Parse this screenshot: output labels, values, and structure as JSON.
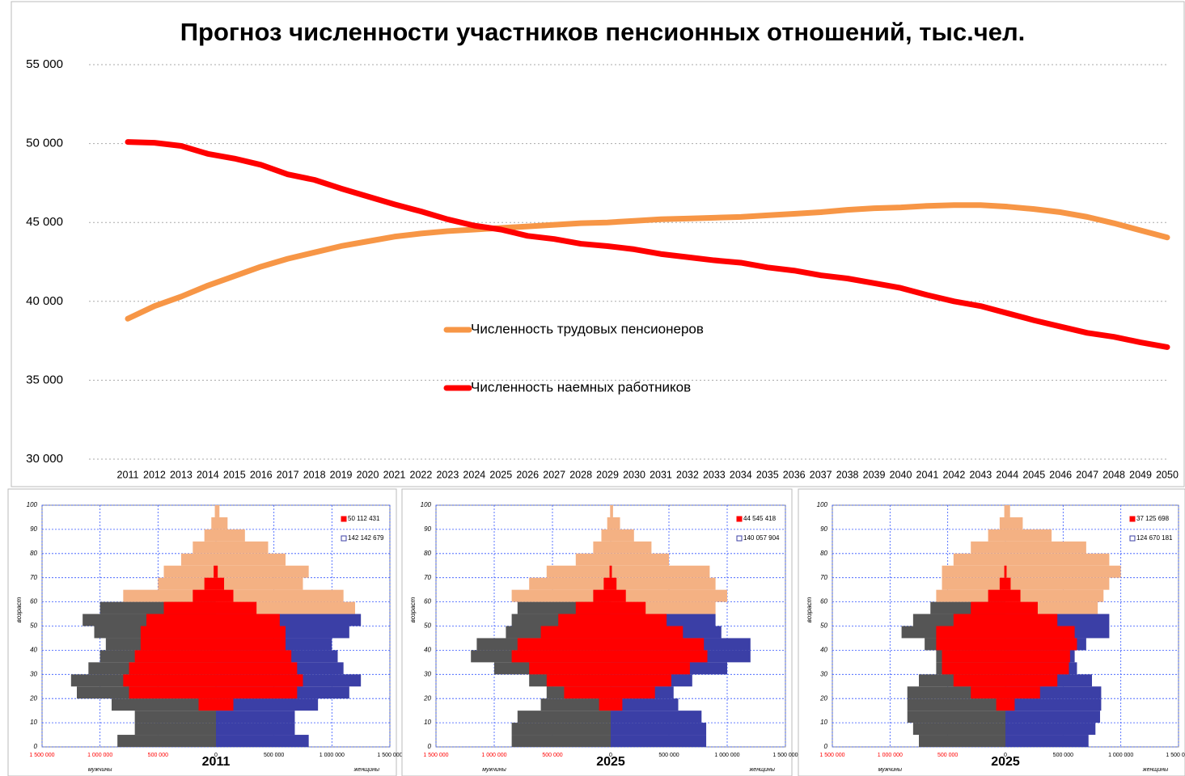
{
  "chart_data": [
    {
      "type": "line",
      "title": "Прогноз численности участников пенсионных отношений, тыс.чел.",
      "x": [
        2011,
        2012,
        2013,
        2014,
        2015,
        2016,
        2017,
        2018,
        2019,
        2020,
        2021,
        2022,
        2023,
        2024,
        2025,
        2026,
        2027,
        2028,
        2029,
        2030,
        2031,
        2032,
        2033,
        2034,
        2035,
        2036,
        2037,
        2038,
        2039,
        2040,
        2041,
        2042,
        2043,
        2044,
        2045,
        2046,
        2047,
        2048,
        2049,
        2050
      ],
      "series": [
        {
          "name": "Численность трудовых пенсионеров",
          "color": "#f79646",
          "values": [
            38900,
            39700,
            40300,
            41000,
            41600,
            42200,
            42700,
            43100,
            43500,
            43800,
            44100,
            44300,
            44450,
            44550,
            44650,
            44750,
            44850,
            44950,
            45000,
            45100,
            45200,
            45250,
            45300,
            45350,
            45450,
            45550,
            45650,
            45800,
            45900,
            45950,
            46050,
            46100,
            46100,
            46000,
            45850,
            45650,
            45350,
            44950,
            44500,
            44050
          ]
        },
        {
          "name": "Численность наемных работников",
          "color": "#ff0000",
          "values": [
            50100,
            50050,
            49850,
            49350,
            49050,
            48650,
            48050,
            47700,
            47150,
            46650,
            46150,
            45700,
            45200,
            44800,
            44550,
            44150,
            43950,
            43650,
            43500,
            43300,
            43000,
            42800,
            42600,
            42450,
            42150,
            41950,
            41650,
            41450,
            41150,
            40850,
            40400,
            40000,
            39700,
            39250,
            38800,
            38400,
            38000,
            37750,
            37400,
            37100
          ]
        }
      ],
      "ylim": [
        30000,
        55000
      ],
      "yticks": [
        {
          "value": 30000,
          "label": "30 000"
        },
        {
          "value": 35000,
          "label": "35 000"
        },
        {
          "value": 40000,
          "label": "40 000"
        },
        {
          "value": 45000,
          "label": "45 000"
        },
        {
          "value": 50000,
          "label": "50 000"
        },
        {
          "value": 55000,
          "label": "55 000"
        }
      ],
      "grid": true,
      "legend": "center"
    },
    {
      "type": "pyramid",
      "title": "2011",
      "xlabel_left": "мужчины",
      "xlabel_right": "женщины",
      "ylabel": "возраст",
      "categories": [
        0,
        5,
        10,
        15,
        20,
        25,
        30,
        35,
        40,
        45,
        50,
        55,
        60,
        65,
        70,
        75,
        80,
        85,
        90,
        95
      ],
      "ylim": [
        0,
        100
      ],
      "yticks": [
        0,
        10,
        20,
        30,
        40,
        50,
        60,
        70,
        80,
        90,
        100
      ],
      "xlim": [
        -1500000,
        1500000
      ],
      "xticks": [
        {
          "value": -1500000,
          "label": "1 500 000"
        },
        {
          "value": -1000000,
          "label": "1 000 000"
        },
        {
          "value": -500000,
          "label": "500 000"
        },
        0,
        {
          "value": 500000,
          "label": "500 000"
        },
        {
          "value": 1000000,
          "label": "1 000 000"
        },
        {
          "value": 1500000,
          "label": "1 500 000"
        }
      ],
      "left_tick_color": "#ff0000",
      "pensioner_color": "#f4b183",
      "pensioner_age_left": 60,
      "pensioner_age_right": 55,
      "series": [
        {
          "name": "50 112 431",
          "color": "#ff0000",
          "left": [
            0,
            0,
            0,
            150000,
            750000,
            800000,
            750000,
            700000,
            650000,
            650000,
            600000,
            450000,
            200000,
            100000,
            20000,
            0,
            0,
            0,
            0,
            0
          ],
          "right": [
            0,
            0,
            0,
            150000,
            700000,
            750000,
            700000,
            650000,
            600000,
            600000,
            550000,
            350000,
            150000,
            70000,
            15000,
            0,
            0,
            0,
            0,
            0
          ]
        },
        {
          "name": "142 142 679",
          "color": "#3b3fa6",
          "left_color": "#555555",
          "left": [
            850000,
            700000,
            700000,
            900000,
            1200000,
            1250000,
            1100000,
            1000000,
            950000,
            1050000,
            1150000,
            1000000,
            800000,
            500000,
            450000,
            300000,
            200000,
            100000,
            40000,
            10000
          ],
          "right": [
            800000,
            680000,
            680000,
            880000,
            1150000,
            1250000,
            1100000,
            1050000,
            1000000,
            1150000,
            1250000,
            1200000,
            1100000,
            750000,
            800000,
            600000,
            450000,
            250000,
            100000,
            30000
          ]
        }
      ]
    },
    {
      "type": "pyramid",
      "title": "2025",
      "xlabel_left": "мужчины",
      "xlabel_right": "женщины",
      "ylabel": "возраст",
      "categories": [
        0,
        5,
        10,
        15,
        20,
        25,
        30,
        35,
        40,
        45,
        50,
        55,
        60,
        65,
        70,
        75,
        80,
        85,
        90,
        95
      ],
      "ylim": [
        0,
        100
      ],
      "yticks": [
        0,
        10,
        20,
        30,
        40,
        50,
        60,
        70,
        80,
        90,
        100
      ],
      "xlim": [
        -1500000,
        1500000
      ],
      "xticks": [
        {
          "value": -1500000,
          "label": "1 500 000"
        },
        {
          "value": -1000000,
          "label": "1 000 000"
        },
        {
          "value": -500000,
          "label": "500 000"
        },
        0,
        {
          "value": 500000,
          "label": "500 000"
        },
        {
          "value": 1000000,
          "label": "1 000 000"
        },
        {
          "value": 1500000,
          "label": "1 500 000"
        }
      ],
      "left_tick_color": "#ff0000",
      "pensioner_color": "#f4b183",
      "pensioner_age_left": 60,
      "pensioner_age_right": 55,
      "series": [
        {
          "name": "44 545 418",
          "color": "#ff0000",
          "left": [
            0,
            0,
            0,
            100000,
            400000,
            550000,
            700000,
            850000,
            800000,
            600000,
            450000,
            300000,
            150000,
            60000,
            10000,
            0,
            0,
            0,
            0,
            0
          ],
          "right": [
            0,
            0,
            0,
            100000,
            380000,
            520000,
            680000,
            830000,
            800000,
            620000,
            480000,
            300000,
            130000,
            50000,
            10000,
            0,
            0,
            0,
            0,
            0
          ]
        },
        {
          "name": "140 057 904",
          "color": "#3b3fa6",
          "left_color": "#555555",
          "left": [
            850000,
            850000,
            800000,
            600000,
            550000,
            700000,
            1000000,
            1200000,
            1150000,
            900000,
            850000,
            800000,
            850000,
            700000,
            550000,
            300000,
            150000,
            80000,
            30000,
            5000
          ],
          "right": [
            820000,
            820000,
            780000,
            580000,
            540000,
            700000,
            1000000,
            1200000,
            1200000,
            950000,
            900000,
            900000,
            1000000,
            900000,
            850000,
            500000,
            350000,
            200000,
            80000,
            20000
          ]
        }
      ]
    },
    {
      "type": "pyramid",
      "title": "2025",
      "xlabel_left": "мужчины",
      "xlabel_right": "женщины",
      "ylabel": "возраст",
      "categories": [
        0,
        5,
        10,
        15,
        20,
        25,
        30,
        35,
        40,
        45,
        50,
        55,
        60,
        65,
        70,
        75,
        80,
        85,
        90,
        95
      ],
      "ylim": [
        0,
        100
      ],
      "yticks": [
        0,
        10,
        20,
        30,
        40,
        50,
        60,
        70,
        80,
        90,
        100
      ],
      "xlim": [
        -1500000,
        1500000
      ],
      "xticks": [
        {
          "value": -1500000,
          "label": "1 500 000"
        },
        {
          "value": -1000000,
          "label": "1 000 000"
        },
        {
          "value": -500000,
          "label": "500 000"
        },
        0,
        {
          "value": 500000,
          "label": "500 000"
        },
        {
          "value": 1000000,
          "label": "1 000 000"
        },
        {
          "value": 1500000,
          "label": "1 500 000"
        }
      ],
      "left_tick_color": "#ff0000",
      "pensioner_color": "#f4b183",
      "pensioner_age_left": 60,
      "pensioner_age_right": 55,
      "series": [
        {
          "name": "37 125 698",
          "color": "#ff0000",
          "left": [
            0,
            0,
            0,
            80000,
            300000,
            450000,
            550000,
            550000,
            600000,
            600000,
            450000,
            300000,
            150000,
            50000,
            10000,
            0,
            0,
            0,
            0,
            0
          ],
          "right": [
            0,
            0,
            0,
            80000,
            300000,
            450000,
            550000,
            560000,
            620000,
            600000,
            450000,
            280000,
            130000,
            45000,
            10000,
            0,
            0,
            0,
            0,
            0
          ]
        },
        {
          "name": "124 670 181",
          "color": "#3b3fa6",
          "left_color": "#555555",
          "left": [
            750000,
            800000,
            850000,
            850000,
            850000,
            750000,
            600000,
            600000,
            700000,
            900000,
            800000,
            650000,
            600000,
            550000,
            550000,
            450000,
            300000,
            150000,
            50000,
            10000
          ],
          "right": [
            720000,
            780000,
            820000,
            830000,
            830000,
            750000,
            620000,
            600000,
            700000,
            900000,
            900000,
            800000,
            850000,
            900000,
            1000000,
            900000,
            700000,
            400000,
            150000,
            40000
          ]
        }
      ]
    }
  ]
}
